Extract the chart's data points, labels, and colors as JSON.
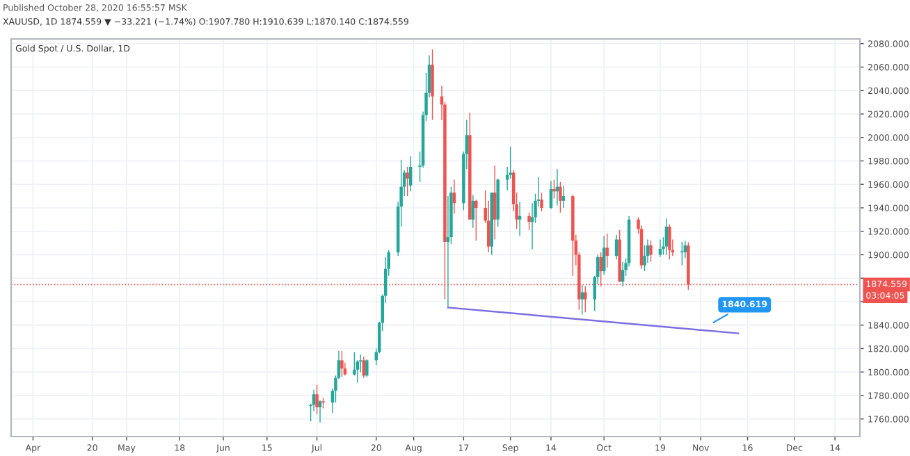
{
  "chart_data": {
    "type": "candlestick",
    "title": "Gold Spot / U.S. Dollar, 1D",
    "subtitle": "XAUUSD, 1D 1874.559 ▼ −33.221 (−1.74%) O:1907.780 H:1910.639 L:1870.140 C:1874.559",
    "annotations": [
      "Published October 28, 2020 16:55:57 MSK",
      "03:04:05",
      {
        "text": "1840.619",
        "x": "2020-11-04",
        "y": 1840.619
      }
    ],
    "x": [
      "2020-06-29",
      "2020-06-30",
      "2020-07-01",
      "2020-07-02",
      "2020-07-03",
      "2020-07-06",
      "2020-07-07",
      "2020-07-08",
      "2020-07-09",
      "2020-07-10",
      "2020-07-13",
      "2020-07-14",
      "2020-07-15",
      "2020-07-16",
      "2020-07-17",
      "2020-07-20",
      "2020-07-21",
      "2020-07-22",
      "2020-07-23",
      "2020-07-24",
      "2020-07-27",
      "2020-07-28",
      "2020-07-29",
      "2020-07-30",
      "2020-07-31",
      "2020-08-03",
      "2020-08-04",
      "2020-08-05",
      "2020-08-06",
      "2020-08-07",
      "2020-08-10",
      "2020-08-11",
      "2020-08-12",
      "2020-08-13",
      "2020-08-14",
      "2020-08-17",
      "2020-08-18",
      "2020-08-19",
      "2020-08-20",
      "2020-08-21",
      "2020-08-24",
      "2020-08-25",
      "2020-08-26",
      "2020-08-27",
      "2020-08-28",
      "2020-08-31",
      "2020-09-01",
      "2020-09-02",
      "2020-09-03",
      "2020-09-04",
      "2020-09-07",
      "2020-09-08",
      "2020-09-09",
      "2020-09-10",
      "2020-09-11",
      "2020-09-14",
      "2020-09-15",
      "2020-09-16",
      "2020-09-17",
      "2020-09-18",
      "2020-09-21",
      "2020-09-22",
      "2020-09-23",
      "2020-09-24",
      "2020-09-25",
      "2020-09-28",
      "2020-09-29",
      "2020-09-30",
      "2020-10-01",
      "2020-10-02",
      "2020-10-05",
      "2020-10-06",
      "2020-10-07",
      "2020-10-08",
      "2020-10-09",
      "2020-10-12",
      "2020-10-13",
      "2020-10-14",
      "2020-10-15",
      "2020-10-16",
      "2020-10-19",
      "2020-10-20",
      "2020-10-21",
      "2020-10-22",
      "2020-10-23",
      "2020-10-26",
      "2020-10-27",
      "2020-10-28"
    ],
    "ohlc": [
      [
        1771,
        1773,
        1758,
        1772
      ],
      [
        1772,
        1785,
        1767,
        1781
      ],
      [
        1781,
        1789,
        1764,
        1770
      ],
      [
        1770,
        1776,
        1757,
        1775
      ],
      [
        1775,
        1778,
        1769,
        1774
      ],
      [
        1774,
        1786,
        1765,
        1784
      ],
      [
        1784,
        1797,
        1774,
        1795
      ],
      [
        1795,
        1818,
        1794,
        1810
      ],
      [
        1810,
        1818,
        1796,
        1803
      ],
      [
        1803,
        1808,
        1797,
        1798
      ],
      [
        1798,
        1817,
        1797,
        1802
      ],
      [
        1802,
        1810,
        1791,
        1809
      ],
      [
        1809,
        1815,
        1800,
        1810
      ],
      [
        1810,
        1813,
        1795,
        1797
      ],
      [
        1797,
        1811,
        1796,
        1810
      ],
      [
        1810,
        1820,
        1806,
        1817
      ],
      [
        1817,
        1843,
        1816,
        1842
      ],
      [
        1842,
        1866,
        1835,
        1865
      ],
      [
        1865,
        1898,
        1859,
        1888
      ],
      [
        1888,
        1904,
        1882,
        1902
      ],
      [
        1902,
        1945,
        1899,
        1941
      ],
      [
        1941,
        1981,
        1924,
        1958
      ],
      [
        1958,
        1972,
        1950,
        1970
      ],
      [
        1970,
        1975,
        1950,
        1965
      ],
      [
        1959,
        1984,
        1954,
        1975
      ],
      [
        1975,
        1988,
        1962,
        1976
      ],
      [
        1976,
        2022,
        1974,
        2019
      ],
      [
        2019,
        2055,
        2014,
        2038
      ],
      [
        2038,
        2070,
        2034,
        2062
      ],
      [
        2062,
        2075,
        2015,
        2035
      ],
      [
        2035,
        2044,
        2015,
        2028
      ],
      [
        2028,
        2030,
        1862,
        1911
      ],
      [
        1911,
        1950,
        1856,
        1915
      ],
      [
        1915,
        1958,
        1909,
        1953
      ],
      [
        1953,
        1964,
        1935,
        1944
      ],
      [
        1944,
        1988,
        1938,
        1986
      ],
      [
        1986,
        2015,
        1973,
        2002
      ],
      [
        2002,
        2021,
        1930,
        1930
      ],
      [
        1930,
        1951,
        1923,
        1946
      ],
      [
        1946,
        1947,
        1912,
        1940
      ],
      [
        1940,
        1955,
        1927,
        1929
      ],
      [
        1929,
        1946,
        1902,
        1907
      ],
      [
        1907,
        1953,
        1900,
        1953
      ],
      [
        1953,
        1976,
        1913,
        1930
      ],
      [
        1930,
        1965,
        1924,
        1964
      ],
      [
        1964,
        1975,
        1955,
        1968
      ],
      [
        1968,
        1992,
        1965,
        1970
      ],
      [
        1970,
        1972,
        1937,
        1943
      ],
      [
        1943,
        1953,
        1922,
        1930
      ],
      [
        1930,
        1945,
        1916,
        1933
      ],
      [
        1933,
        1936,
        1921,
        1928
      ],
      [
        1928,
        1944,
        1905,
        1932
      ],
      [
        1932,
        1952,
        1927,
        1946
      ],
      [
        1946,
        1966,
        1941,
        1947
      ],
      [
        1947,
        1953,
        1937,
        1940
      ],
      [
        1940,
        1963,
        1939,
        1956
      ],
      [
        1956,
        1964,
        1948,
        1954
      ],
      [
        1954,
        1973,
        1942,
        1958
      ],
      [
        1958,
        1962,
        1936,
        1946
      ],
      [
        1946,
        1959,
        1940,
        1950
      ],
      [
        1950,
        1951,
        1882,
        1912
      ],
      [
        1912,
        1917,
        1891,
        1900
      ],
      [
        1900,
        1902,
        1853,
        1862
      ],
      [
        1862,
        1874,
        1849,
        1868
      ],
      [
        1868,
        1873,
        1851,
        1862
      ],
      [
        1862,
        1882,
        1852,
        1881
      ],
      [
        1881,
        1900,
        1875,
        1898
      ],
      [
        1898,
        1902,
        1873,
        1886
      ],
      [
        1886,
        1916,
        1883,
        1906
      ],
      [
        1906,
        1918,
        1889,
        1899
      ],
      [
        1899,
        1917,
        1896,
        1913
      ],
      [
        1913,
        1921,
        1877,
        1877
      ],
      [
        1877,
        1894,
        1873,
        1887
      ],
      [
        1887,
        1897,
        1882,
        1893
      ],
      [
        1893,
        1933,
        1890,
        1930
      ],
      [
        1930,
        1932,
        1918,
        1922
      ],
      [
        1922,
        1925,
        1888,
        1891
      ],
      [
        1891,
        1908,
        1886,
        1899
      ],
      [
        1899,
        1913,
        1893,
        1908
      ],
      [
        1908,
        1912,
        1894,
        1900
      ],
      [
        1900,
        1913,
        1898,
        1905
      ],
      [
        1905,
        1915,
        1900,
        1907
      ],
      [
        1907,
        1931,
        1900,
        1924
      ],
      [
        1924,
        1926,
        1896,
        1904
      ],
      [
        1904,
        1913,
        1899,
        1902
      ],
      [
        1902,
        1911,
        1891,
        1903
      ],
      [
        1902,
        1912,
        1897,
        1908
      ],
      [
        1907.78,
        1910.639,
        1870.14,
        1874.559
      ]
    ],
    "colors": [
      "#26a69a",
      "#26a69a",
      "#ef5350",
      "#26a69a",
      "#ef5350",
      "#26a69a",
      "#26a69a",
      "#26a69a",
      "#ef5350",
      "#ef5350",
      "#26a69a",
      "#26a69a",
      "#26a69a",
      "#ef5350",
      "#26a69a",
      "#26a69a",
      "#26a69a",
      "#26a69a",
      "#26a69a",
      "#26a69a",
      "#26a69a",
      "#26a69a",
      "#26a69a",
      "#ef5350",
      "#26a69a",
      "#26a69a",
      "#26a69a",
      "#26a69a",
      "#26a69a",
      "#ef5350",
      "#ef5350",
      "#ef5350",
      "#26a69a",
      "#26a69a",
      "#ef5350",
      "#26a69a",
      "#26a69a",
      "#ef5350",
      "#26a69a",
      "#ef5350",
      "#ef5350",
      "#ef5350",
      "#26a69a",
      "#ef5350",
      "#26a69a",
      "#26a69a",
      "#26a69a",
      "#ef5350",
      "#ef5350",
      "#26a69a",
      "#ef5350",
      "#26a69a",
      "#26a69a",
      "#26a69a",
      "#ef5350",
      "#26a69a",
      "#ef5350",
      "#26a69a",
      "#ef5350",
      "#26a69a",
      "#ef5350",
      "#ef5350",
      "#ef5350",
      "#26a69a",
      "#ef5350",
      "#26a69a",
      "#26a69a",
      "#ef5350",
      "#26a69a",
      "#ef5350",
      "#26a69a",
      "#ef5350",
      "#26a69a",
      "#26a69a",
      "#26a69a",
      "#ef5350",
      "#ef5350",
      "#26a69a",
      "#26a69a",
      "#ef5350",
      "#26a69a",
      "#26a69a",
      "#26a69a",
      "#ef5350",
      "#ef5350",
      "#26a69a",
      "#26a69a",
      "#ef5350"
    ],
    "series": [
      {
        "type": "line",
        "color": "#7b6fe0",
        "x": [
          "2020-08-12",
          "2020-11-13"
        ],
        "values": [
          1855,
          1833
        ]
      }
    ],
    "ref_lines": [
      {
        "axis": "y",
        "value": 1874.559,
        "label": "1874.559",
        "color": "#ef5350",
        "line_style": "dotted"
      }
    ],
    "xlim": [
      "2020-03-25",
      "2020-12-22"
    ],
    "xticks": [
      {
        "value": "2020-04-01",
        "label": "Apr"
      },
      {
        "value": "2020-04-20",
        "label": "20"
      },
      {
        "value": "2020-05-01",
        "label": "May"
      },
      {
        "value": "2020-05-18",
        "label": "18"
      },
      {
        "value": "2020-06-01",
        "label": "Jun"
      },
      {
        "value": "2020-06-15",
        "label": "15"
      },
      {
        "value": "2020-07-01",
        "label": "Jul"
      },
      {
        "value": "2020-07-20",
        "label": "20"
      },
      {
        "value": "2020-08-01",
        "label": "Aug"
      },
      {
        "value": "2020-08-17",
        "label": "17"
      },
      {
        "value": "2020-09-01",
        "label": "Sep"
      },
      {
        "value": "2020-09-14",
        "label": "14"
      },
      {
        "value": "2020-10-01",
        "label": "Oct"
      },
      {
        "value": "2020-10-19",
        "label": "19"
      },
      {
        "value": "2020-11-01",
        "label": "Nov"
      },
      {
        "value": "2020-11-16",
        "label": "16"
      },
      {
        "value": "2020-12-01",
        "label": "Dec"
      },
      {
        "value": "2020-12-14",
        "label": "14"
      }
    ],
    "ylim": [
      1745,
      2084
    ],
    "yticks": [
      {
        "value": 1760,
        "label": "1760.000"
      },
      {
        "value": 1780,
        "label": "1780.000"
      },
      {
        "value": 1800,
        "label": "1800.000"
      },
      {
        "value": 1820,
        "label": "1820.000"
      },
      {
        "value": 1840,
        "label": "1840.000"
      },
      {
        "value": 1860,
        "label": null
      },
      {
        "value": 1880,
        "label": null
      },
      {
        "value": 1900,
        "label": "1900.000"
      },
      {
        "value": 1920,
        "label": "1920.000"
      },
      {
        "value": 1940,
        "label": "1940.000"
      },
      {
        "value": 1960,
        "label": "1960.000"
      },
      {
        "value": 1980,
        "label": "1980.000"
      },
      {
        "value": 2000,
        "label": "2000.000"
      },
      {
        "value": 2020,
        "label": "2020.000"
      },
      {
        "value": 2040,
        "label": "2040.000"
      },
      {
        "value": 2060,
        "label": "2060.000"
      },
      {
        "value": 2080,
        "label": "2080.000"
      }
    ],
    "grid": true,
    "legend": false
  }
}
